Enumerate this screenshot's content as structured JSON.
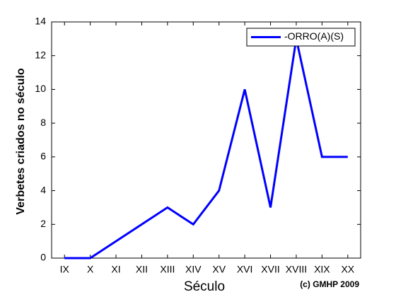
{
  "chart_data": {
    "type": "line",
    "categories": [
      "IX",
      "X",
      "XI",
      "XII",
      "XIII",
      "XIV",
      "XV",
      "XVI",
      "XVII",
      "XVIII",
      "XIX",
      "XX"
    ],
    "series": [
      {
        "name": "-ORRO(A)(S)",
        "color": "#0000ff",
        "values": [
          0,
          0,
          1,
          2,
          3,
          2,
          4,
          10,
          3,
          13,
          6,
          6
        ]
      }
    ],
    "xlabel": "Século",
    "ylabel": "Verbetes criados no século",
    "annotation": "(c) GMHP 2009",
    "ylim": [
      0,
      14
    ],
    "yticks": [
      0,
      2,
      4,
      6,
      8,
      10,
      12,
      14
    ],
    "legend": "upper right"
  }
}
